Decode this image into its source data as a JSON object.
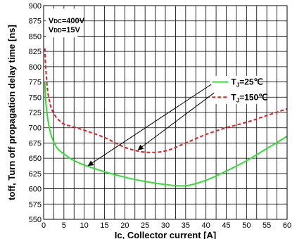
{
  "chart_data": {
    "type": "line",
    "xlabel": "Ic, Collector current [A]",
    "ylabel": "toff, Turn off propagation delay time [ns]",
    "xlim": [
      0,
      60
    ],
    "ylim": [
      550,
      900
    ],
    "xticks": [
      0,
      5,
      10,
      15,
      20,
      25,
      30,
      35,
      40,
      45,
      50,
      55,
      60
    ],
    "yticks": [
      550,
      575,
      600,
      625,
      650,
      675,
      700,
      725,
      750,
      775,
      800,
      825,
      850,
      875,
      900
    ],
    "grid": true,
    "conditions": {
      "vdc_sym": "V",
      "vdc_sub": "DC",
      "vdc_val": "=400V",
      "vdd_sym": "V",
      "vdd_sub": "DD",
      "vdd_val": "=15V"
    },
    "legend": {
      "position": "top-right",
      "tj_symbol": "T",
      "tj_sub": "J"
    },
    "series": [
      {
        "name": "TJ=25℃",
        "label_value": "=25℃",
        "color": "#33dd33",
        "style": "solid",
        "x": [
          0.3,
          0.5,
          1,
          1.5,
          2,
          3,
          4,
          5,
          7,
          10,
          15,
          20,
          25,
          30,
          35,
          40,
          45,
          50,
          55,
          60
        ],
        "y": [
          775,
          745,
          715,
          697,
          685,
          670,
          662,
          657,
          648,
          639,
          628,
          619,
          612,
          607,
          605,
          614,
          629,
          646,
          666,
          686
        ]
      },
      {
        "name": "TJ=150℃",
        "label_value": "=150℃",
        "color": "#dd2222",
        "style": "dashed",
        "x": [
          0.3,
          0.5,
          1,
          1.5,
          2,
          3,
          4,
          5,
          7,
          10,
          15,
          20,
          25,
          30,
          35,
          40,
          45,
          50,
          55,
          60
        ],
        "y": [
          830,
          800,
          760,
          742,
          730,
          718,
          711,
          706,
          702,
          696,
          684,
          668,
          660,
          662,
          675,
          689,
          700,
          709,
          720,
          731
        ]
      }
    ]
  }
}
